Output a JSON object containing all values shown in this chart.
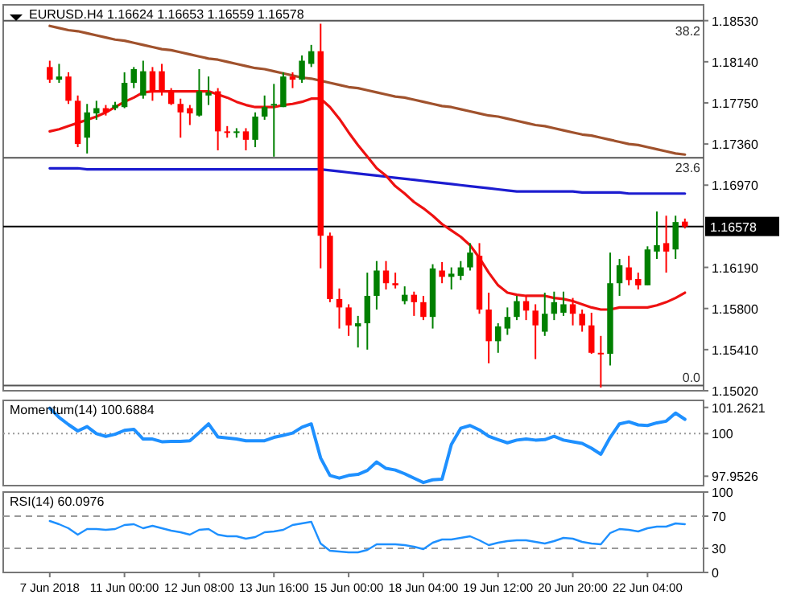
{
  "chart_data": [
    {
      "type": "candlestick",
      "title": "EURUSD.H4 1.16624 1.16653 1.16559 1.16578",
      "ohlc": [
        [
          1.1809,
          1.1815,
          1.1794,
          1.1797
        ],
        [
          1.1797,
          1.1812,
          1.1794,
          1.18
        ],
        [
          1.18,
          1.1804,
          1.1774,
          1.1777
        ],
        [
          1.1777,
          1.1782,
          1.1733,
          1.1736
        ],
        [
          1.1742,
          1.1774,
          1.1727,
          1.1766
        ],
        [
          1.1765,
          1.1777,
          1.1759,
          1.177
        ],
        [
          1.177,
          1.1773,
          1.1763,
          1.1766
        ],
        [
          1.177,
          1.1776,
          1.1768,
          1.1773
        ],
        [
          1.1771,
          1.1804,
          1.177,
          1.1794
        ],
        [
          1.1794,
          1.1809,
          1.1789,
          1.1807
        ],
        [
          1.1782,
          1.1815,
          1.1779,
          1.1805
        ],
        [
          1.1805,
          1.1809,
          1.1777,
          1.1785
        ],
        [
          1.1805,
          1.1812,
          1.1782,
          1.1786
        ],
        [
          1.1786,
          1.1789,
          1.1773,
          1.1774
        ],
        [
          1.1774,
          1.1779,
          1.1742,
          1.1766
        ],
        [
          1.177,
          1.1773,
          1.1754,
          1.1765
        ],
        [
          1.1763,
          1.1807,
          1.1762,
          1.1786
        ],
        [
          1.1782,
          1.18,
          1.1773,
          1.1785
        ],
        [
          1.1786,
          1.1789,
          1.173,
          1.1748
        ],
        [
          1.1748,
          1.1753,
          1.1742,
          1.1747
        ],
        [
          1.1747,
          1.1751,
          1.1742,
          1.1748
        ],
        [
          1.1748,
          1.1751,
          1.173,
          1.174
        ],
        [
          1.174,
          1.1766,
          1.1733,
          1.1762
        ],
        [
          1.1762,
          1.1782,
          1.1759,
          1.1771
        ],
        [
          1.1773,
          1.1793,
          1.1724,
          1.1774
        ],
        [
          1.1771,
          1.1804,
          1.1771,
          1.18
        ],
        [
          1.18,
          1.1804,
          1.1789,
          1.1797
        ],
        [
          1.1797,
          1.182,
          1.1794,
          1.1815
        ],
        [
          1.1812,
          1.183,
          1.1809,
          1.1824
        ],
        [
          1.1824,
          1.185,
          1.1618,
          1.1649
        ],
        [
          1.1649,
          1.1652,
          1.1586,
          1.1589
        ],
        [
          1.1589,
          1.1599,
          1.1561,
          1.1581
        ],
        [
          1.1581,
          1.1584,
          1.1554,
          1.1564
        ],
        [
          1.1563,
          1.1573,
          1.1543,
          1.1566
        ],
        [
          1.1566,
          1.1614,
          1.1541,
          1.1592
        ],
        [
          1.1592,
          1.1625,
          1.1579,
          1.1616
        ],
        [
          1.1616,
          1.1625,
          1.1598,
          1.1604
        ],
        [
          1.1604,
          1.1614,
          1.1599,
          1.1602
        ],
        [
          1.1587,
          1.1601,
          1.1584,
          1.1593
        ],
        [
          1.1593,
          1.1596,
          1.1573,
          1.1586
        ],
        [
          1.1586,
          1.1592,
          1.1569,
          1.1572
        ],
        [
          1.1572,
          1.1622,
          1.1561,
          1.1618
        ],
        [
          1.1616,
          1.1624,
          1.1604,
          1.161
        ],
        [
          1.161,
          1.1619,
          1.1598,
          1.1613
        ],
        [
          1.1611,
          1.1625,
          1.1607,
          1.1619
        ],
        [
          1.1619,
          1.1642,
          1.1616,
          1.1633
        ],
        [
          1.163,
          1.1642,
          1.1575,
          1.1579
        ],
        [
          1.1579,
          1.1595,
          1.1528,
          1.1549
        ],
        [
          1.1549,
          1.1566,
          1.1538,
          1.1563
        ],
        [
          1.1561,
          1.1581,
          1.1555,
          1.1572
        ],
        [
          1.1572,
          1.1592,
          1.1569,
          1.1587
        ],
        [
          1.1587,
          1.1592,
          1.1569,
          1.1578
        ],
        [
          1.1578,
          1.1584,
          1.1532,
          1.1564
        ],
        [
          1.1558,
          1.1595,
          1.1554,
          1.1575
        ],
        [
          1.1575,
          1.1596,
          1.1569,
          1.1586
        ],
        [
          1.1576,
          1.1596,
          1.1573,
          1.1584
        ],
        [
          1.1584,
          1.159,
          1.1564,
          1.1575
        ],
        [
          1.1575,
          1.1579,
          1.1558,
          1.1564
        ],
        [
          1.1564,
          1.1576,
          1.1537,
          1.1538
        ],
        [
          1.1538,
          1.1554,
          1.1505,
          1.1537
        ],
        [
          1.1537,
          1.1633,
          1.1526,
          1.1604
        ],
        [
          1.1604,
          1.1627,
          1.1592,
          1.1621
        ],
        [
          1.1619,
          1.163,
          1.1602,
          1.1607
        ],
        [
          1.1608,
          1.1614,
          1.1598,
          1.1602
        ],
        [
          1.1602,
          1.1639,
          1.1602,
          1.1636
        ],
        [
          1.1634,
          1.1672,
          1.1627,
          1.164
        ],
        [
          1.1642,
          1.1668,
          1.1614,
          1.1634
        ],
        [
          1.1636,
          1.1668,
          1.1627,
          1.1662
        ],
        [
          1.16624,
          1.16653,
          1.16559,
          1.16578
        ]
      ],
      "colors": [
        "#ff0000",
        "#008000",
        "#ff0000",
        "#ff0000",
        "#008000",
        "#008000",
        "#ff0000",
        "#008000",
        "#008000",
        "#008000",
        "#008000",
        "#ff0000",
        "#ff0000",
        "#ff0000",
        "#ff0000",
        "#ff0000",
        "#008000",
        "#008000",
        "#ff0000",
        "#ff0000",
        "#008000",
        "#ff0000",
        "#008000",
        "#008000",
        "#008000",
        "#008000",
        "#ff0000",
        "#008000",
        "#008000",
        "#ff0000",
        "#ff0000",
        "#ff0000",
        "#ff0000",
        "#008000",
        "#008000",
        "#008000",
        "#ff0000",
        "#ff0000",
        "#008000",
        "#ff0000",
        "#ff0000",
        "#008000",
        "#ff0000",
        "#008000",
        "#008000",
        "#008000",
        "#ff0000",
        "#ff0000",
        "#008000",
        "#008000",
        "#008000",
        "#ff0000",
        "#ff0000",
        "#008000",
        "#008000",
        "#008000",
        "#ff0000",
        "#ff0000",
        "#ff0000",
        "#ff0000",
        "#008000",
        "#008000",
        "#ff0000",
        "#ff0000",
        "#008000",
        "#008000",
        "#ff0000",
        "#008000",
        "#ff0000"
      ],
      "series": [
        {
          "type": "line",
          "color": "#a0522d",
          "values": [
            1.1848,
            1.1846,
            1.1844,
            1.1843,
            1.1841,
            1.1839,
            1.1837,
            1.1835,
            1.1834,
            1.1832,
            1.183,
            1.1828,
            1.1826,
            1.1825,
            1.1823,
            1.1821,
            1.1819,
            1.1817,
            1.1816,
            1.1814,
            1.1812,
            1.181,
            1.1808,
            1.1807,
            1.1805,
            1.1803,
            1.1801,
            1.1799,
            1.1798,
            1.1796,
            1.1794,
            1.1792,
            1.179,
            1.1789,
            1.1787,
            1.1785,
            1.1783,
            1.1781,
            1.178,
            1.1778,
            1.1776,
            1.1774,
            1.1772,
            1.1771,
            1.1769,
            1.1767,
            1.1765,
            1.1763,
            1.1762,
            1.176,
            1.1758,
            1.1756,
            1.1754,
            1.1753,
            1.1751,
            1.1749,
            1.1747,
            1.1745,
            1.1744,
            1.1742,
            1.174,
            1.1738,
            1.1736,
            1.1735,
            1.1733,
            1.1731,
            1.1729,
            1.1727,
            1.1726
          ]
        },
        {
          "type": "line",
          "color": "#1c1cd0",
          "values": [
            1.1713,
            1.1713,
            1.1713,
            1.1713,
            1.1712,
            1.1712,
            1.1712,
            1.1712,
            1.1712,
            1.1712,
            1.1712,
            1.1712,
            1.1712,
            1.1712,
            1.1712,
            1.1712,
            1.1712,
            1.1712,
            1.1712,
            1.1712,
            1.1712,
            1.1712,
            1.1712,
            1.1712,
            1.1712,
            1.1712,
            1.1712,
            1.1712,
            1.1712,
            1.1712,
            1.1711,
            1.171,
            1.1709,
            1.1708,
            1.1707,
            1.1706,
            1.1705,
            1.1704,
            1.1703,
            1.1702,
            1.1701,
            1.17,
            1.1699,
            1.1698,
            1.1697,
            1.1696,
            1.1695,
            1.1694,
            1.1693,
            1.1692,
            1.1691,
            1.1691,
            1.1691,
            1.1691,
            1.1691,
            1.1691,
            1.1691,
            1.169,
            1.169,
            1.169,
            1.169,
            1.169,
            1.1689,
            1.1689,
            1.1689,
            1.1689,
            1.1689,
            1.1689,
            1.1689
          ]
        },
        {
          "type": "line",
          "color": "#ee1111",
          "values": [
            1.1748,
            1.175,
            1.1753,
            1.1756,
            1.1759,
            1.1762,
            1.1766,
            1.1771,
            1.1776,
            1.178,
            1.1785,
            1.1786,
            1.1786,
            1.1786,
            1.1786,
            1.1786,
            1.1786,
            1.1786,
            1.1783,
            1.178,
            1.1776,
            1.1773,
            1.1771,
            1.1771,
            1.1771,
            1.1773,
            1.1774,
            1.1776,
            1.1779,
            1.1779,
            1.1771,
            1.176,
            1.1747,
            1.1735,
            1.1724,
            1.1713,
            1.1706,
            1.1696,
            1.1689,
            1.1681,
            1.1675,
            1.1668,
            1.166,
            1.1654,
            1.1648,
            1.164,
            1.1628,
            1.1614,
            1.1602,
            1.1595,
            1.1593,
            1.1592,
            1.1592,
            1.1592,
            1.159,
            1.1589,
            1.1587,
            1.1584,
            1.1581,
            1.1579,
            1.1579,
            1.1581,
            1.1581,
            1.1581,
            1.1581,
            1.1583,
            1.1586,
            1.159,
            1.1595
          ]
        }
      ],
      "ylim": [
        1.1502,
        1.1868
      ],
      "yticks": [
        {
          "value": 1.1853,
          "label": "1.18530"
        },
        {
          "value": 1.1814,
          "label": "1.18140"
        },
        {
          "value": 1.1775,
          "label": "1.17750"
        },
        {
          "value": 1.1736,
          "label": "1.17360"
        },
        {
          "value": 1.1697,
          "label": "1.16970"
        },
        {
          "value": 1.1619,
          "label": "1.16190"
        },
        {
          "value": 1.158,
          "label": "1.15800"
        },
        {
          "value": 1.1541,
          "label": "1.15410"
        },
        {
          "value": 1.1502,
          "label": "1.15020"
        }
      ],
      "ref_lines": [
        {
          "axis": "y",
          "value": 1.1853,
          "color": "#555555"
        },
        {
          "axis": "y",
          "value": 1.1723,
          "color": "#555555"
        },
        {
          "axis": "y",
          "value": 1.1507,
          "color": "#555555"
        },
        {
          "axis": "y",
          "value": 1.16578,
          "label": "1.16578",
          "color": "#000000"
        }
      ],
      "annotations": [
        {
          "text": "38.2",
          "y": 1.1853
        },
        {
          "text": "23.6",
          "y": 1.1723
        },
        {
          "text": "0.0",
          "y": 1.1507
        }
      ],
      "tick_labels": "y"
    },
    {
      "type": "line",
      "title": "Momentum(14) 100.6884",
      "series": [
        {
          "color": "#1e90ff",
          "values": [
            101.23,
            100.78,
            100.44,
            100.13,
            100.34,
            100.0,
            99.87,
            99.97,
            100.16,
            100.21,
            99.74,
            99.74,
            99.61,
            99.63,
            99.63,
            99.66,
            100.05,
            100.47,
            99.84,
            99.79,
            99.74,
            99.66,
            99.66,
            99.66,
            99.82,
            99.92,
            100.03,
            100.31,
            100.47,
            98.83,
            97.99,
            97.86,
            97.99,
            98.04,
            98.23,
            98.64,
            98.33,
            98.25,
            98.07,
            97.86,
            97.65,
            97.78,
            97.81,
            99.48,
            100.26,
            100.39,
            100.18,
            99.87,
            99.71,
            99.56,
            99.69,
            99.74,
            99.69,
            99.71,
            99.87,
            99.69,
            99.61,
            99.53,
            99.3,
            99.01,
            99.82,
            100.47,
            100.57,
            100.42,
            100.39,
            100.52,
            100.6,
            100.99,
            100.69
          ]
        }
      ],
      "ylim": [
        97.5,
        101.6
      ],
      "yticks": [
        97.9526,
        100,
        101.2621
      ],
      "ref_lines": [
        {
          "axis": "y",
          "value": 100,
          "color": "#999999",
          "line_style": "dotted"
        }
      ],
      "tick_labels": "y"
    },
    {
      "type": "line",
      "title": "RSI(14) 60.0976",
      "categories": [
        "7 Jun 2018",
        null,
        null,
        null,
        null,
        null,
        null,
        null,
        "11 Jun 00:00",
        null,
        null,
        null,
        null,
        null,
        null,
        null,
        "12 Jun 08:00",
        null,
        null,
        null,
        null,
        null,
        null,
        null,
        "13 Jun 16:00",
        null,
        null,
        null,
        null,
        null,
        null,
        null,
        "15 Jun 00:00",
        null,
        null,
        null,
        null,
        null,
        null,
        null,
        "18 Jun 04:00",
        null,
        null,
        null,
        null,
        null,
        null,
        null,
        "19 Jun 12:00",
        null,
        null,
        null,
        null,
        null,
        null,
        null,
        "20 Jun 20:00",
        null,
        null,
        null,
        null,
        null,
        null,
        null,
        "22 Jun 04:00",
        null,
        null,
        null,
        null
      ],
      "series": [
        {
          "color": "#1e90ff",
          "values": [
            64,
            60,
            55,
            47,
            54,
            54,
            53,
            54,
            59,
            60,
            55,
            58,
            55,
            52,
            50,
            47,
            53,
            54,
            47,
            45,
            45,
            42,
            44,
            50,
            51,
            53,
            59,
            61,
            63,
            36,
            27,
            26,
            25,
            25,
            28,
            35,
            35,
            35,
            34,
            32,
            29,
            37,
            41,
            41,
            43,
            45,
            40,
            34,
            37,
            39,
            40,
            40,
            38,
            36,
            39,
            43,
            42,
            38,
            36,
            35,
            49,
            54,
            53,
            51,
            55,
            57,
            57,
            61,
            60
          ]
        }
      ],
      "ylim": [
        0,
        100
      ],
      "yticks": [
        0,
        30,
        70,
        100
      ],
      "ref_lines": [
        {
          "axis": "y",
          "value": 70,
          "color": "#999999",
          "line_style": "dashed"
        },
        {
          "axis": "y",
          "value": 30,
          "color": "#999999",
          "line_style": "dashed"
        }
      ]
    }
  ]
}
